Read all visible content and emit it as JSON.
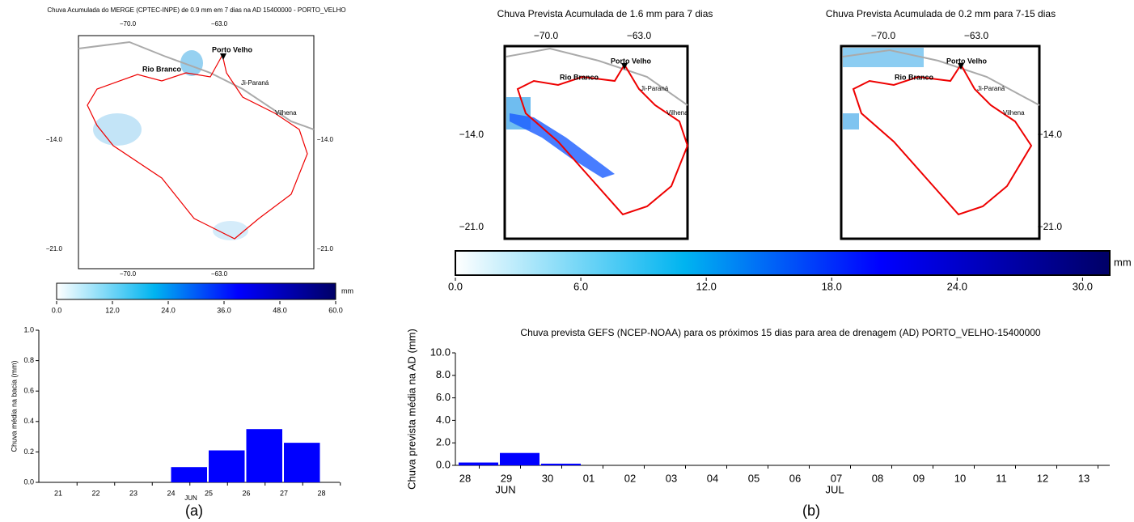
{
  "maps": [
    {
      "title": "Chuva Acumulada do MERGE (CPTEC-INPE) de 0.9 mm em 7 dias na AD 15400000 - PORTO_VELHO",
      "xtick_labels": [
        "−70.0",
        "−63.0"
      ],
      "ytick_labels": [
        "−14.0",
        "−21.0"
      ],
      "places": [
        "Porto Velho",
        "Rio Branco",
        "Ji-Paraná",
        "Vilhena"
      ]
    },
    {
      "title": "Chuva Prevista Acumulada de 1.6 mm para 7 dias",
      "xtick_labels": [
        "−70.0",
        "−63.0"
      ],
      "ytick_labels": [
        "−14.0",
        "−21.0"
      ],
      "places": [
        "Porto Velho",
        "Rio Branco",
        "Ji-Paraná",
        "Vilhena"
      ]
    },
    {
      "title": "Chuva Prevista Acumulada de 0.2 mm para 7-15 dias",
      "xtick_labels": [
        "−70.0",
        "−63.0"
      ],
      "ytick_labels": [
        "−14.0",
        "−21.0"
      ],
      "places": [
        "Porto Velho",
        "Rio Branco",
        "Ji-Paraná",
        "Vilhena"
      ]
    }
  ],
  "colorbars": [
    {
      "unit": "mm",
      "lim": [
        0,
        60
      ],
      "ticks": [
        {
          "value": 0,
          "label": "0.0"
        },
        {
          "value": 12,
          "label": "12.0"
        },
        {
          "value": 24,
          "label": "24.0"
        },
        {
          "value": 36,
          "label": "36.0"
        },
        {
          "value": 48,
          "label": "48.0"
        },
        {
          "value": 60,
          "label": "60.0"
        }
      ]
    },
    {
      "unit": "mm",
      "lim": [
        0,
        31.3
      ],
      "ticks": [
        {
          "value": 0,
          "label": "0.0"
        },
        {
          "value": 6,
          "label": "6.0"
        },
        {
          "value": 12,
          "label": "12.0"
        },
        {
          "value": 18,
          "label": "18.0"
        },
        {
          "value": 24,
          "label": "24.0"
        },
        {
          "value": 30,
          "label": "30.0"
        }
      ]
    }
  ],
  "chart_data": [
    {
      "type": "bar",
      "ylabel": "Chuva média na bacia (mm)",
      "month_labels": [
        "JUN"
      ],
      "panel": "(a)",
      "categories": [
        "21",
        "22",
        "23",
        "24",
        "25",
        "26",
        "27",
        "28"
      ],
      "values": [
        0,
        0,
        0,
        0.1,
        0.21,
        0.35,
        0.26,
        null
      ],
      "color": "#0000ff",
      "ylim": [
        0,
        1.0
      ],
      "yticks": [
        {
          "value": 0,
          "label": "0.0"
        },
        {
          "value": 0.2,
          "label": "0.2"
        },
        {
          "value": 0.4,
          "label": "0.4"
        },
        {
          "value": 0.6,
          "label": "0.6"
        },
        {
          "value": 0.8,
          "label": "0.8"
        },
        {
          "value": 1.0,
          "label": "1.0"
        }
      ]
    },
    {
      "type": "bar",
      "title": "Chuva prevista GEFS (NCEP-NOAA) para os próximos 15 dias para area de drenagem (AD) PORTO_VELHO-15400000",
      "ylabel": "Chuva prevista média na AD (mm)",
      "month_labels": [
        "JUN",
        "JUL"
      ],
      "panel": "(b)",
      "categories": [
        "28",
        "29",
        "30",
        "01",
        "02",
        "03",
        "04",
        "05",
        "06",
        "07",
        "08",
        "09",
        "10",
        "11",
        "12",
        "13"
      ],
      "values": [
        0.25,
        1.1,
        0.15,
        0,
        0,
        0,
        0,
        0,
        0,
        0,
        0,
        0,
        0,
        0,
        0,
        null
      ],
      "color": "#0000ff",
      "ylim": [
        0,
        10.0
      ],
      "yticks": [
        {
          "value": 0,
          "label": "0.0"
        },
        {
          "value": 2,
          "label": "2.0"
        },
        {
          "value": 4,
          "label": "4.0"
        },
        {
          "value": 6,
          "label": "6.0"
        },
        {
          "value": 8,
          "label": "8.0"
        },
        {
          "value": 10,
          "label": "10.0"
        }
      ]
    }
  ]
}
